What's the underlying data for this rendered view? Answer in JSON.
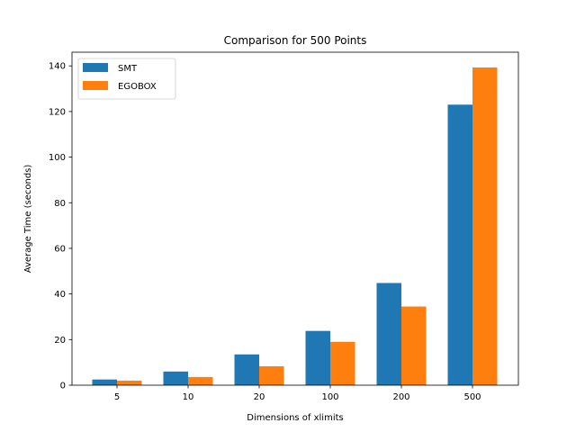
{
  "chart_data": {
    "type": "bar",
    "title": "Comparison for 500 Points",
    "xlabel": "Dimensions of xlimits",
    "ylabel": "Average Time (seconds)",
    "categories": [
      "5",
      "10",
      "20",
      "100",
      "200",
      "500"
    ],
    "series": [
      {
        "name": "SMT",
        "color": "#1f77b4",
        "values": [
          2.5,
          6.0,
          13.5,
          23.8,
          44.8,
          123.0
        ]
      },
      {
        "name": "EGOBOX",
        "color": "#ff7f0e",
        "values": [
          2.0,
          3.6,
          8.3,
          19.0,
          34.5,
          139.3
        ]
      }
    ],
    "ylim": [
      0,
      146
    ],
    "yticks": [
      0,
      20,
      40,
      60,
      80,
      100,
      120,
      140
    ],
    "grid": false,
    "legend": "top-left"
  }
}
